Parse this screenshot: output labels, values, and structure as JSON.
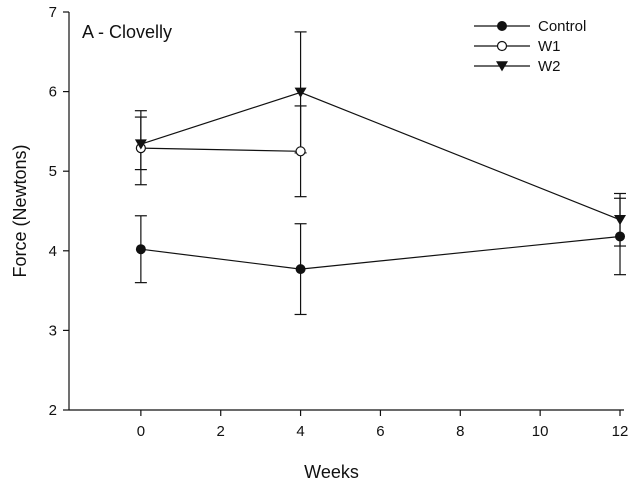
{
  "chart_data": {
    "type": "line",
    "panel_label": "A - Clovelly",
    "title": "",
    "xlabel": "Weeks",
    "ylabel": "Force (Newtons)",
    "xlim": [
      -1.8,
      12.1
    ],
    "ylim": [
      2,
      7
    ],
    "xticks": [
      0,
      2,
      4,
      6,
      8,
      10,
      12
    ],
    "yticks": [
      2,
      3,
      4,
      5,
      6,
      7
    ],
    "grid": false,
    "legend_position": "top-right",
    "series": [
      {
        "name": "Control",
        "marker": "filled-circle",
        "x": [
          0,
          4,
          12
        ],
        "y": [
          4.02,
          3.77,
          4.18
        ],
        "err_low": [
          3.6,
          3.2,
          3.7
        ],
        "err_high": [
          4.44,
          4.34,
          4.66
        ]
      },
      {
        "name": "W1",
        "marker": "open-circle",
        "x": [
          0,
          4
        ],
        "y": [
          5.29,
          5.25
        ],
        "err_low": [
          4.83,
          4.68
        ],
        "err_high": [
          5.68,
          5.82
        ]
      },
      {
        "name": "W2",
        "marker": "filled-triangle-down",
        "x": [
          0,
          4,
          12
        ],
        "y": [
          5.34,
          5.99,
          4.39
        ],
        "err_low": [
          5.02,
          5.23,
          4.06
        ],
        "err_high": [
          5.76,
          6.75,
          4.72
        ]
      }
    ]
  }
}
